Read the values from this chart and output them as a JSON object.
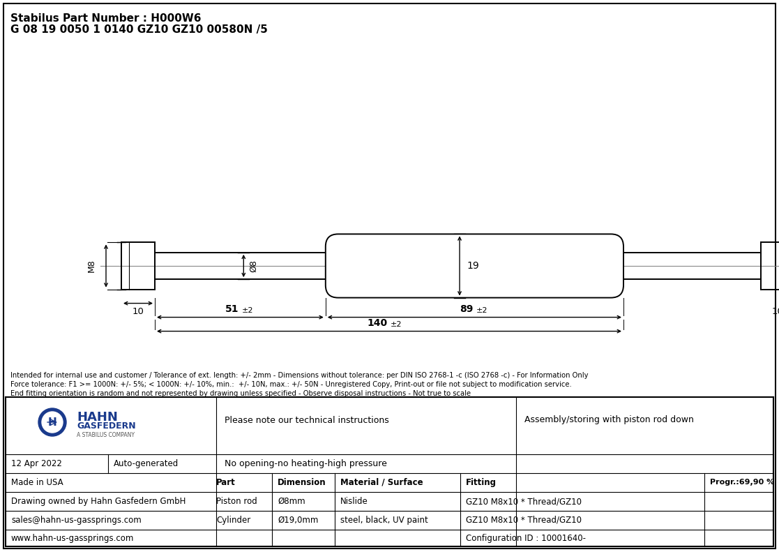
{
  "title_line1": "Stabilus Part Number : H000W6",
  "title_line2": "G 08 19 0050 1 0140 GZ10 GZ10 00580N /5",
  "disclaimer": "Intended for internal use and customer / Tolerance of ext. length: +/- 2mm - Dimensions without tolerance: per DIN ISO 2768-1 -c (ISO 2768 -c) - For Information Only\nForce tolerance: F1 >= 1000N: +/- 5%; < 1000N: +/- 10%, min.:  +/- 10N, max.: +/- 50N - Unregistered Copy, Print-out or file not subject to modification service.\nEnd fitting orientation is random and not represented by drawing unless specified - Observe disposal instructions - Not true to scale",
  "footer": {
    "date": "12 Apr 2022",
    "generated": "Auto-generated",
    "made_in": "Made in USA",
    "drawing_owner": "Drawing owned by Hahn Gasfedern GmbH",
    "email": "sales@hahn-us-gassprings.com",
    "website": "www.hahn-us-gassprings.com",
    "note1": "Please note our technical instructions",
    "note2": "No opening-no heating-high pressure",
    "assembly": "Assembly/storing with piston rod down",
    "progr": "Progr.:69,90 %",
    "part_col": "Part",
    "dim_col": "Dimension",
    "material_col": "Material / Surface",
    "fitting_col": "Fitting",
    "row1_part": "Piston rod",
    "row1_dim": "Ø8mm",
    "row1_mat": "Nislide",
    "row1_fit": "GZ10 M8x10 * Thread/GZ10",
    "row2_part": "Cylinder",
    "row2_dim": "Ø19,0mm",
    "row2_mat": "steel, black, UV paint",
    "row2_fit": "GZ10 M8x10 * Thread/GZ10",
    "config": "Configuration ID : 10001640-"
  },
  "bg_color": "#ffffff",
  "lc": "#000000",
  "gray": "#888888"
}
